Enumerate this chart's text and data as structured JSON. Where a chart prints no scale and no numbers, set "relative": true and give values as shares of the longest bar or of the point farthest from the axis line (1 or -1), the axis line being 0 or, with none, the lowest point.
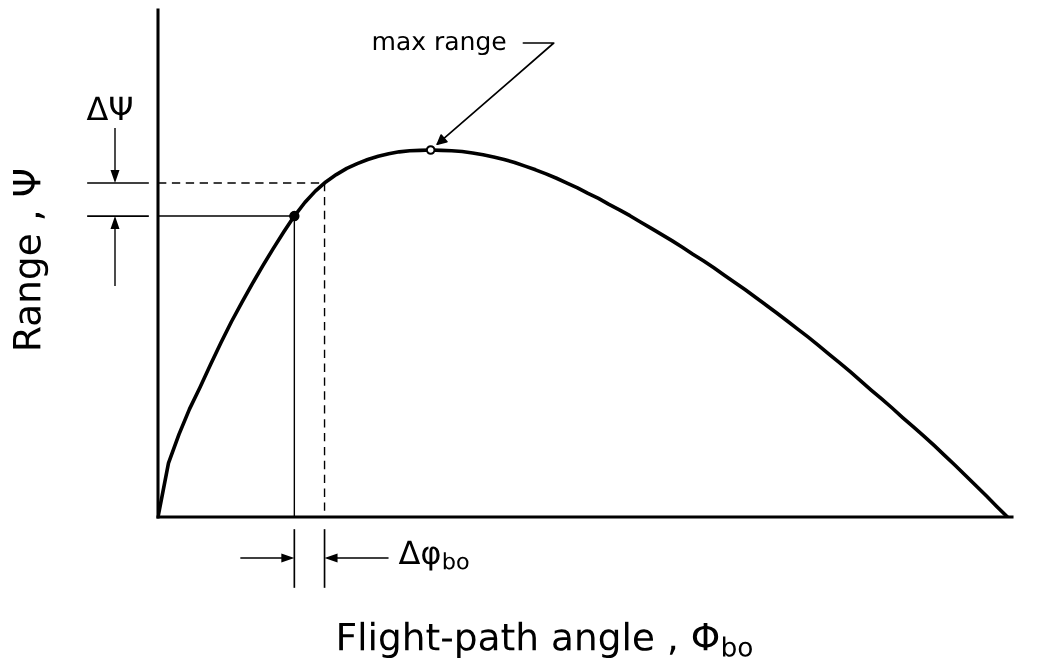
{
  "chart_data": {
    "type": "line",
    "relative": true,
    "xlabel": "Flight-path angle , Φ$_{bo}$",
    "ylabel": "Range , Ψ",
    "categories": [
      null,
      null,
      null,
      null,
      null,
      null,
      null,
      null,
      null,
      null,
      null,
      null,
      null,
      null,
      null,
      null,
      null,
      null,
      null,
      null,
      null,
      null,
      null,
      null,
      null,
      null,
      null,
      null,
      null,
      null,
      null,
      null,
      null,
      null,
      null,
      null,
      null,
      null,
      null,
      null,
      null,
      null,
      null,
      null,
      null,
      null,
      null,
      null,
      null,
      null,
      null,
      null,
      null,
      null,
      null,
      null,
      null,
      null,
      null,
      null,
      null,
      null,
      null,
      null,
      null,
      null,
      null,
      null,
      null,
      null,
      null,
      null,
      null,
      null,
      null,
      null,
      null,
      null,
      null,
      null,
      null,
      null
    ],
    "values": [
      0,
      0.147,
      0.225,
      0.294,
      0.353,
      0.415,
      0.475,
      0.532,
      0.585,
      0.636,
      0.685,
      0.732,
      0.777,
      0.82,
      0.857,
      0.888,
      0.913,
      0.933,
      0.95,
      0.963,
      0.974,
      0.983,
      0.99,
      0.995,
      0.998,
      0.999,
      1.0,
      0.999,
      0.998,
      0.996,
      0.992,
      0.987,
      0.981,
      0.974,
      0.966,
      0.956,
      0.946,
      0.935,
      0.923,
      0.91,
      0.897,
      0.882,
      0.868,
      0.852,
      0.837,
      0.821,
      0.804,
      0.787,
      0.77,
      0.753,
      0.735,
      0.716,
      0.698,
      0.679,
      0.659,
      0.639,
      0.619,
      0.598,
      0.577,
      0.556,
      0.534,
      0.512,
      0.49,
      0.467,
      0.443,
      0.42,
      0.396,
      0.371,
      0.346,
      0.322,
      0.297,
      0.271,
      0.246,
      0.221,
      0.195,
      0.168,
      0.141,
      0.113,
      0.085,
      0.057,
      0.028,
      0
    ],
    "color": "#000000",
    "ref_lines": [
      {
        "axis": "y",
        "value": 0.91,
        "line_style": "dashed",
        "color": "#000000"
      },
      {
        "axis": "y",
        "value": 0.82,
        "line_style": "solid",
        "color": "#000000"
      }
    ],
    "annotations": [
      "max range",
      "ΔΨ",
      "Δφ$_{bo}$"
    ]
  }
}
